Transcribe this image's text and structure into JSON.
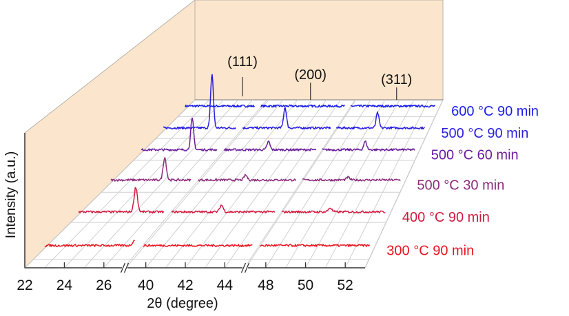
{
  "chart_data": {
    "type": "line",
    "style": "3d-waterfall",
    "xlabel": "2θ (degree)",
    "ylabel": "Intensity (a.u.)",
    "x_axis_segments": [
      [
        22,
        27
      ],
      [
        39,
        45
      ],
      [
        47,
        53
      ]
    ],
    "x_ticks": [
      22,
      24,
      26,
      40,
      42,
      44,
      48,
      50,
      52
    ],
    "x_tick_labels": [
      "22",
      "24",
      "26",
      "40",
      "42",
      "44",
      "48",
      "50",
      "52"
    ],
    "axis_breaks": true,
    "grid": true,
    "wall_color": "#fbe6cd",
    "peak_annotations": [
      {
        "label": "(111)",
        "x": 25.3
      },
      {
        "label": "(200)",
        "x": 41.9
      },
      {
        "label": "(311)",
        "x": 49.8
      }
    ],
    "series": [
      {
        "name": "300 °C 90 min",
        "color": "#e8141e",
        "peaks": [
          {
            "x": 26.8,
            "height": 7
          }
        ]
      },
      {
        "name": "400 °C 90 min",
        "color": "#d21a3e",
        "peaks": [
          {
            "x": 25.3,
            "height": 36
          },
          {
            "x": 41.9,
            "height": 10
          },
          {
            "x": 49.8,
            "height": 6
          }
        ]
      },
      {
        "name": "500 °C 30 min",
        "color": "#8c2a7c",
        "peaks": [
          {
            "x": 25.3,
            "height": 33
          },
          {
            "x": 41.9,
            "height": 7
          },
          {
            "x": 49.8,
            "height": 4
          }
        ]
      },
      {
        "name": "500 °C 60 min",
        "color": "#6a1c9c",
        "peaks": [
          {
            "x": 25.3,
            "height": 45
          },
          {
            "x": 41.9,
            "height": 12
          },
          {
            "x": 49.8,
            "height": 12
          }
        ]
      },
      {
        "name": "500 °C 90 min",
        "color": "#2a1ee0",
        "peaks": [
          {
            "x": 25.3,
            "height": 78
          },
          {
            "x": 41.9,
            "height": 30
          },
          {
            "x": 49.8,
            "height": 22
          }
        ]
      },
      {
        "name": "600 °C 90 min",
        "color": "#1a1ee8",
        "peaks": []
      }
    ]
  }
}
